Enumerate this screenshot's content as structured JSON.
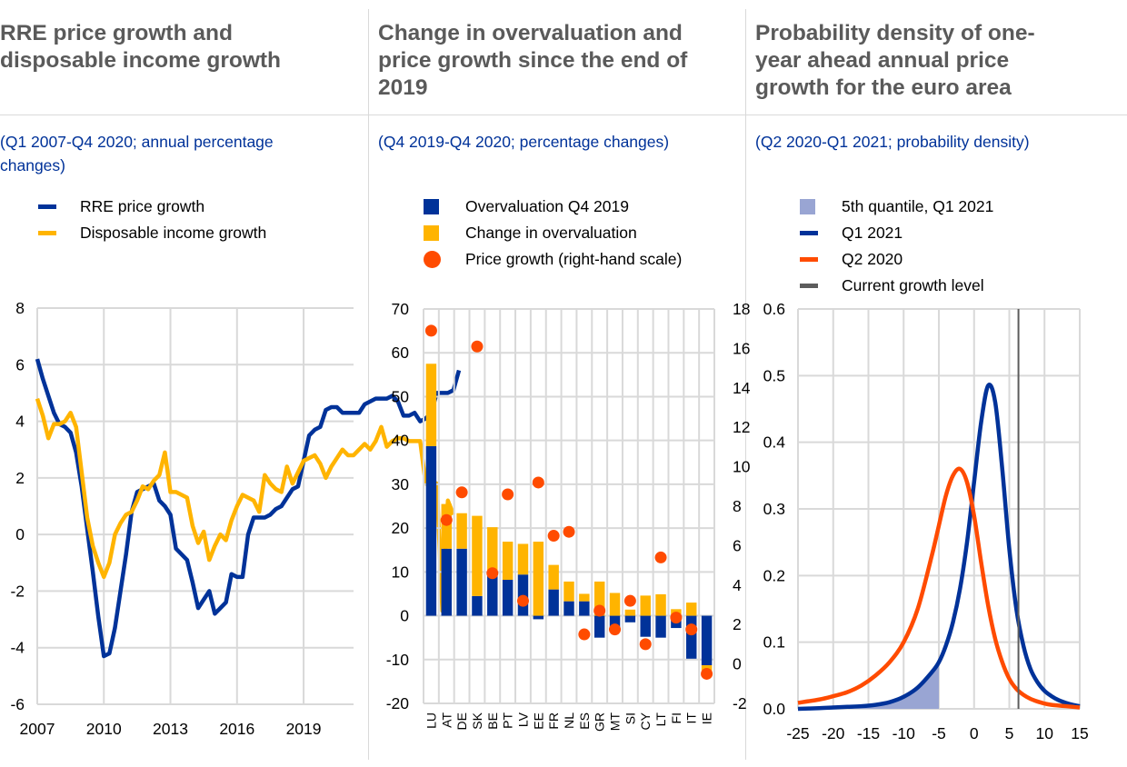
{
  "panels": [
    {
      "title": [
        "RRE price growth and",
        "disposable income growth"
      ],
      "subtitle": [
        "(Q1 2007-Q4 2020; annual percentage",
        "changes)"
      ],
      "legend": [
        {
          "label": "RRE price growth",
          "color": "#003299",
          "kind": "line"
        },
        {
          "label": "Disposable  income growth",
          "color": "#ffb400",
          "kind": "line"
        }
      ]
    },
    {
      "title": [
        "Change in overvaluation and",
        "price growth since the end of",
        "2019"
      ],
      "subtitle": [
        "(Q4 2019-Q4 2020; percentage changes)"
      ],
      "legend": [
        {
          "label": "Overvaluation  Q4 2019",
          "color": "#003299",
          "kind": "box"
        },
        {
          "label": "Change  in overvaluation",
          "color": "#ffb400",
          "kind": "box"
        },
        {
          "label": "Price growth  (right-hand  scale)",
          "color": "#ff4b00",
          "kind": "dot"
        }
      ]
    },
    {
      "title": [
        "Probability density of one-",
        "year ahead annual price",
        "growth for the euro area"
      ],
      "subtitle": [
        "(Q2 2020-Q1 2021; probability density)"
      ],
      "legend": [
        {
          "label": "5th quantile,  Q1 2021",
          "color": "#99a5d3",
          "kind": "box"
        },
        {
          "label": "Q1 2021",
          "color": "#003299",
          "kind": "line"
        },
        {
          "label": "Q2 2020",
          "color": "#ff4b00",
          "kind": "line"
        },
        {
          "label": "Current growth level",
          "color": "#5c5c5c",
          "kind": "line"
        }
      ]
    }
  ],
  "chart_data": [
    {
      "type": "line",
      "title": "RRE price growth and disposable income growth",
      "subtitle": "(Q1 2007-Q4 2020; annual percentage changes)",
      "x_start": 2007.0,
      "x_step": 0.25,
      "xticks": [
        2007,
        2010,
        2013,
        2016,
        2019
      ],
      "xlim": [
        2007,
        2021.25
      ],
      "ylim": [
        -6,
        8
      ],
      "yticks": [
        -6,
        -4,
        -2,
        0,
        2,
        4,
        6,
        8
      ],
      "grid": true,
      "legend_position": "top-left",
      "series": [
        {
          "name": "RRE price growth",
          "color": "#003299",
          "values": [
            6.2,
            5.5,
            4.9,
            4.3,
            3.9,
            3.8,
            3.6,
            2.9,
            1.7,
            0.2,
            -1.3,
            -2.9,
            -4.3,
            -4.2,
            -3.3,
            -2.0,
            -0.7,
            0.8,
            1.5,
            1.6,
            1.7,
            1.8,
            1.2,
            1.0,
            0.7,
            -0.5,
            -0.7,
            -0.9,
            -1.7,
            -2.6,
            -2.3,
            -2.0,
            -2.8,
            -2.6,
            -2.4,
            -1.4,
            -1.5,
            -1.5,
            0.0,
            0.6,
            0.6,
            0.6,
            0.7,
            0.9,
            1.0,
            1.3,
            1.6,
            1.7,
            2.6,
            3.5,
            3.7,
            3.8,
            4.4,
            4.5,
            4.5,
            4.3,
            4.3,
            4.3,
            4.3,
            4.6,
            4.7,
            4.8,
            4.8,
            4.8,
            4.9,
            4.7,
            4.2,
            4.2,
            4.3,
            4.0,
            4.1,
            4.3,
            5.0,
            5.0,
            5.0,
            5.1,
            5.8
          ]
        },
        {
          "name": "Disposable  income growth",
          "color": "#ffb400",
          "values": [
            4.8,
            4.2,
            3.4,
            3.9,
            3.9,
            4.0,
            4.3,
            3.8,
            2.2,
            0.6,
            -0.4,
            -1.0,
            -1.5,
            -1.0,
            0.0,
            0.4,
            0.7,
            0.8,
            1.2,
            1.7,
            1.6,
            1.9,
            2.1,
            2.9,
            1.5,
            1.5,
            1.4,
            1.3,
            0.3,
            -0.3,
            0.1,
            -0.9,
            -0.4,
            0.0,
            -0.2,
            0.5,
            1.0,
            1.4,
            1.3,
            1.2,
            0.8,
            2.1,
            1.8,
            1.6,
            1.5,
            2.4,
            1.8,
            2.2,
            2.6,
            2.7,
            2.8,
            2.5,
            2.0,
            2.4,
            2.7,
            3.0,
            2.8,
            2.8,
            3.0,
            3.2,
            3.0,
            3.3,
            3.8,
            3.1,
            3.3,
            3.4,
            3.4,
            3.3,
            3.3,
            3.3,
            1.8,
            1.9,
            1.8,
            -2.7,
            1.2,
            0.7
          ]
        }
      ]
    },
    {
      "type": "bar",
      "title": "Change in overvaluation and price growth since the end of 2019",
      "subtitle": "(Q4 2019-Q4 2020; percentage changes)",
      "categories": [
        "LU",
        "AT",
        "DE",
        "SK",
        "BE",
        "PT",
        "LV",
        "EE",
        "FR",
        "NL",
        "ES",
        "GR",
        "MT",
        "SI",
        "CY",
        "LT",
        "FI",
        "IT",
        "IE"
      ],
      "ylim": [
        -20,
        70
      ],
      "yticks": [
        -20,
        -10,
        0,
        10,
        20,
        30,
        40,
        50,
        60,
        70
      ],
      "y2lim": [
        -2,
        18
      ],
      "y2ticks": [
        -2,
        0,
        2,
        4,
        6,
        8,
        10,
        12,
        14,
        16,
        18
      ],
      "grid": true,
      "legend_position": "top",
      "series": [
        {
          "name": "Overvaluation  Q4 2019",
          "color": "#003299",
          "axis": "left",
          "stacked": true,
          "values": [
            38.7,
            15.3,
            15.3,
            4.5,
            9.9,
            8.2,
            9.4,
            -0.8,
            6.0,
            3.3,
            3.3,
            -5.0,
            -3.3,
            -1.5,
            -4.8,
            -5.0,
            -2.8,
            -9.8,
            -11.3
          ]
        },
        {
          "name": "Change  in overvaluation",
          "color": "#ffb400",
          "axis": "left",
          "stacked": true,
          "values": [
            18.8,
            10.2,
            8.1,
            18.3,
            10.3,
            8.7,
            7.0,
            16.9,
            5.6,
            4.5,
            1.7,
            7.8,
            5.2,
            1.4,
            4.6,
            4.9,
            1.5,
            3.0,
            -1.2
          ]
        },
        {
          "name": "Price growth  (right-hand  scale)",
          "color": "#ff4b00",
          "axis": "right",
          "kind": "scatter",
          "values": [
            16.9,
            7.3,
            8.7,
            16.1,
            4.6,
            8.6,
            3.2,
            9.2,
            6.5,
            6.7,
            1.5,
            2.7,
            1.75,
            3.2,
            1.0,
            5.4,
            2.35,
            1.75,
            -0.5
          ]
        }
      ]
    },
    {
      "type": "line",
      "title": "Probability density of one-year ahead annual price growth for the euro area",
      "subtitle": "(Q2 2020-Q1 2021; probability density)",
      "xlim": [
        -25,
        15
      ],
      "xticks": [
        -25,
        -20,
        -15,
        -10,
        -5,
        0,
        5,
        10,
        15
      ],
      "ylim": [
        0.0,
        0.6
      ],
      "yticks": [
        "0.0",
        "0.1",
        "0.2",
        "0.3",
        "0.4",
        "0.5",
        "0.6"
      ],
      "grid": true,
      "legend_position": "top",
      "x": [
        -25,
        -22,
        -20,
        -18,
        -16,
        -14,
        -12,
        -10,
        -8,
        -6,
        -5,
        -4,
        -3,
        -2,
        -1,
        0,
        1,
        2,
        3,
        4,
        5,
        6,
        7,
        8,
        9,
        10,
        11,
        12,
        13,
        14,
        15
      ],
      "series": [
        {
          "name": "Q1 2021",
          "color": "#003299",
          "values": [
            0.0,
            0.001,
            0.002,
            0.003,
            0.004,
            0.006,
            0.01,
            0.018,
            0.032,
            0.055,
            0.07,
            0.095,
            0.13,
            0.18,
            0.25,
            0.34,
            0.43,
            0.485,
            0.46,
            0.36,
            0.24,
            0.15,
            0.095,
            0.06,
            0.04,
            0.027,
            0.019,
            0.013,
            0.009,
            0.006,
            0.004
          ]
        },
        {
          "name": "Q2 2020",
          "color": "#ff4b00",
          "values": [
            0.009,
            0.014,
            0.019,
            0.025,
            0.035,
            0.05,
            0.07,
            0.1,
            0.15,
            0.23,
            0.275,
            0.32,
            0.35,
            0.36,
            0.34,
            0.29,
            0.22,
            0.155,
            0.105,
            0.07,
            0.045,
            0.03,
            0.021,
            0.015,
            0.011,
            0.008,
            0.006,
            0.005,
            0.004,
            0.003,
            0.002
          ]
        }
      ],
      "shaded_region": {
        "name": "5th quantile,  Q1 2021",
        "series": "Q1 2021",
        "x_from": -25,
        "x_to": -5,
        "color": "#99a5d3"
      },
      "vline": {
        "name": "Current growth level",
        "x": 6.3,
        "color": "#5c5c5c"
      }
    }
  ]
}
